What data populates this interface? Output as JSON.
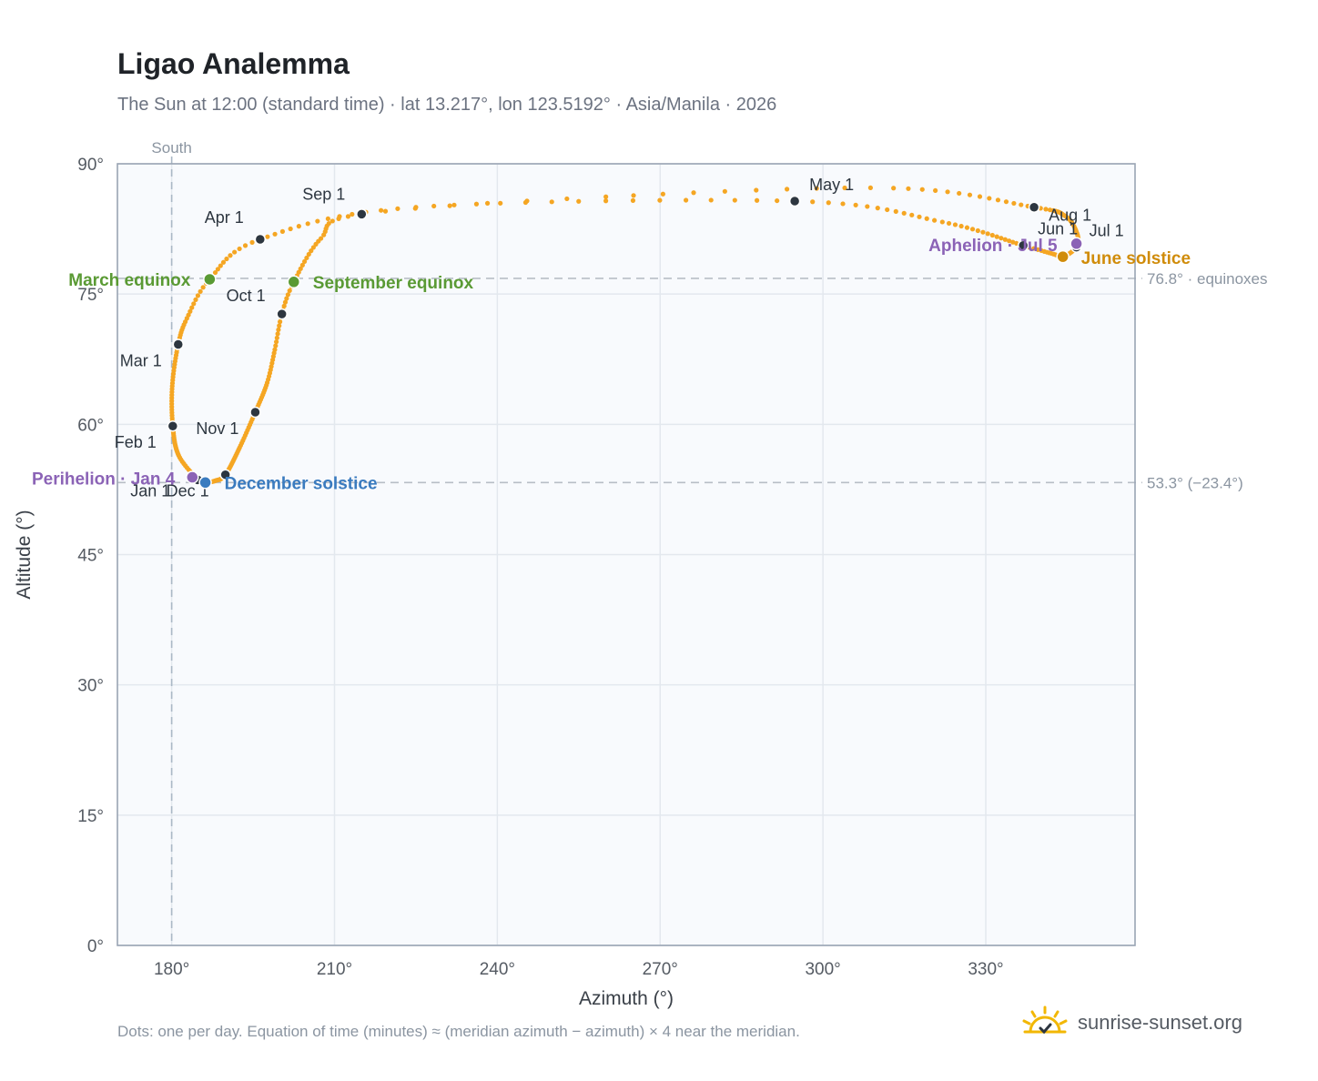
{
  "title": "Ligao Analemma",
  "subtitle": "The Sun at 12:00 (standard time) · lat 13.217°, lon 123.5192° · Asia/Manila · 2026",
  "footnote": "Dots: one per day. Equation of time (minutes) ≈ (meridian azimuth − azimuth) × 4 near the meridian.",
  "brand": "sunrise-sunset.org",
  "colors": {
    "path": "#f5a623",
    "month_marker": "#2d3640",
    "equinox": "#5a9a34",
    "december_solstice": "#3a7bbf",
    "june_solstice": "#d08c0a",
    "apsis": "#8b63b6",
    "grid": "#e3e8ee",
    "plot_bg": "#f8fafd",
    "reference_line": "#b8bec6"
  },
  "chart_data": {
    "type": "scatter",
    "title": "Ligao Analemma",
    "xlabel": "Azimuth (°)",
    "ylabel": "Altitude (°)",
    "xlim": [
      170,
      357.5
    ],
    "ylim": [
      0,
      90
    ],
    "x_ticks": [
      {
        "value": 180,
        "label": "180°"
      },
      {
        "value": 210,
        "label": "210°"
      },
      {
        "value": 240,
        "label": "240°"
      },
      {
        "value": 270,
        "label": "270°"
      },
      {
        "value": 300,
        "label": "300°"
      },
      {
        "value": 330,
        "label": "330°"
      }
    ],
    "y_ticks": [
      {
        "value": 0,
        "label": "0°"
      },
      {
        "value": 15,
        "label": "15°"
      },
      {
        "value": 30,
        "label": "30°"
      },
      {
        "value": 45,
        "label": "45°"
      },
      {
        "value": 60,
        "label": "60°"
      },
      {
        "value": 75,
        "label": "75°"
      },
      {
        "value": 90,
        "label": "90°"
      }
    ],
    "grid": true,
    "south_line": {
      "azimuth": 180,
      "label": "South"
    },
    "reference_lines": [
      {
        "altitude": 76.8,
        "label": "76.8° · equinoxes"
      },
      {
        "altitude": 53.3,
        "label": "53.3° (−23.4°)"
      }
    ],
    "daily_path_nodes": [
      {
        "date": "Jan 1",
        "az": 184.8,
        "alt": 53.6
      },
      {
        "date": "Jan 15",
        "az": 181.3,
        "alt": 56.4
      },
      {
        "date": "Feb 1",
        "az": 180.2,
        "alt": 59.8
      },
      {
        "date": "Feb 15",
        "az": 180.1,
        "alt": 64.4
      },
      {
        "date": "Mar 1",
        "az": 181.2,
        "alt": 69.2
      },
      {
        "date": "Mar 10",
        "az": 182.8,
        "alt": 72.2
      },
      {
        "date": "Mar 20",
        "az": 187.0,
        "alt": 76.7
      },
      {
        "date": "Apr 1",
        "az": 196.3,
        "alt": 81.3
      },
      {
        "date": "Apr 15",
        "az": 225.0,
        "alt": 85.0
      },
      {
        "date": "May 1",
        "az": 294.8,
        "alt": 85.7
      },
      {
        "date": "May 15",
        "az": 322.0,
        "alt": 83.3
      },
      {
        "date": "Jun 1",
        "az": 336.9,
        "alt": 80.6
      },
      {
        "date": "Jun 10",
        "az": 342.5,
        "alt": 79.6
      },
      {
        "date": "Jun 21",
        "az": 344.2,
        "alt": 79.3
      },
      {
        "date": "Jul 1",
        "az": 346.7,
        "alt": 80.4
      },
      {
        "date": "Jul 10",
        "az": 346.8,
        "alt": 82.0
      },
      {
        "date": "Jul 20",
        "az": 344.6,
        "alt": 84.0
      },
      {
        "date": "Aug 1",
        "az": 338.9,
        "alt": 85.0
      },
      {
        "date": "Aug 15",
        "az": 313.0,
        "alt": 87.2
      },
      {
        "date": "Aug 25",
        "az": 260.0,
        "alt": 86.2
      },
      {
        "date": "Sep 1",
        "az": 215.0,
        "alt": 84.2
      },
      {
        "date": "Sep 10",
        "az": 207.5,
        "alt": 81.4
      },
      {
        "date": "Sep 23",
        "az": 202.5,
        "alt": 76.4
      },
      {
        "date": "Oct 1",
        "az": 200.3,
        "alt": 72.7
      },
      {
        "date": "Oct 10",
        "az": 199.0,
        "alt": 68.6
      },
      {
        "date": "Oct 20",
        "az": 197.6,
        "alt": 64.8
      },
      {
        "date": "Nov 1",
        "az": 195.4,
        "alt": 61.4
      },
      {
        "date": "Nov 15",
        "az": 192.5,
        "alt": 57.3
      },
      {
        "date": "Dec 1",
        "az": 189.9,
        "alt": 54.2
      },
      {
        "date": "Dec 10",
        "az": 188.0,
        "alt": 53.5
      },
      {
        "date": "Dec 21",
        "az": 186.2,
        "alt": 53.3
      },
      {
        "date": "Dec 31",
        "az": 184.9,
        "alt": 53.5
      }
    ],
    "month_markers": [
      {
        "label": "Jan 1",
        "az": 184.8,
        "alt": 53.6
      },
      {
        "label": "Feb 1",
        "az": 180.2,
        "alt": 59.8
      },
      {
        "label": "Mar 1",
        "az": 181.2,
        "alt": 69.2
      },
      {
        "label": "Apr 1",
        "az": 196.3,
        "alt": 81.3
      },
      {
        "label": "May 1",
        "az": 294.8,
        "alt": 85.7
      },
      {
        "label": "Jun 1",
        "az": 336.9,
        "alt": 80.6
      },
      {
        "label": "Jul 1",
        "az": 346.7,
        "alt": 80.4
      },
      {
        "label": "Aug 1",
        "az": 338.9,
        "alt": 85.0
      },
      {
        "label": "Sep 1",
        "az": 215.0,
        "alt": 84.2
      },
      {
        "label": "Oct 1",
        "az": 200.3,
        "alt": 72.7
      },
      {
        "label": "Nov 1",
        "az": 195.4,
        "alt": 61.4
      },
      {
        "label": "Dec 1",
        "az": 189.9,
        "alt": 54.2
      }
    ],
    "events": [
      {
        "label": "March equinox",
        "az": 187.0,
        "alt": 76.7,
        "kind": "equinox"
      },
      {
        "label": "September equinox",
        "az": 202.5,
        "alt": 76.4,
        "kind": "equinox"
      },
      {
        "label": "June solstice",
        "az": 344.2,
        "alt": 79.3,
        "kind": "june_solstice"
      },
      {
        "label": "December solstice",
        "az": 186.2,
        "alt": 53.3,
        "kind": "december_solstice"
      },
      {
        "label": "Perihelion · Jan 4",
        "az": 183.8,
        "alt": 53.9,
        "kind": "apsis"
      },
      {
        "label": "Aphelion · Jul 5",
        "az": 346.7,
        "alt": 80.8,
        "kind": "apsis"
      }
    ]
  }
}
